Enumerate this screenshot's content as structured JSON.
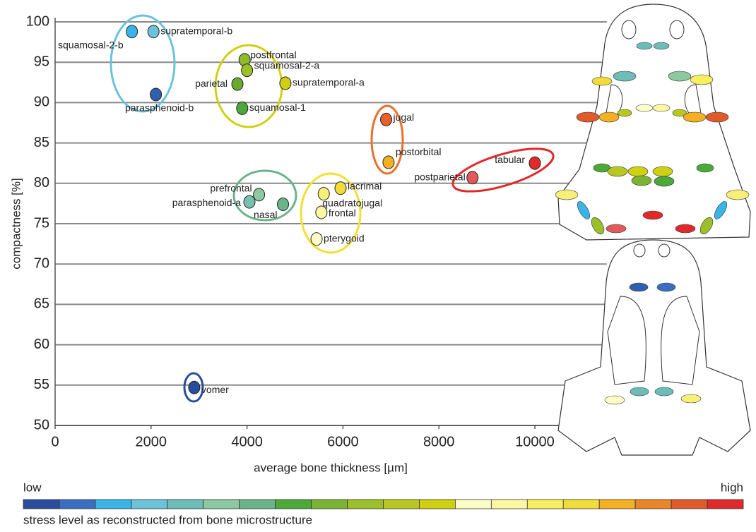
{
  "chart_data": {
    "type": "scatter",
    "x_label": "average bone thickness [µm]",
    "y_label": "compactness [%]",
    "xlim": [
      0,
      11500
    ],
    "ylim": [
      50,
      100
    ],
    "xticks": [
      0,
      2000,
      4000,
      6000,
      8000,
      10000
    ],
    "yticks": [
      50,
      55,
      60,
      65,
      70,
      75,
      80,
      85,
      90,
      95,
      100
    ],
    "grid": true,
    "points": [
      {
        "name": "squamosal-2-b",
        "x": 1600,
        "y": 98.8,
        "color": "#3ab4e6"
      },
      {
        "name": "supratemporal-b",
        "x": 2050,
        "y": 98.8,
        "color": "#6cc2da"
      },
      {
        "name": "parasphenoid-b",
        "x": 2100,
        "y": 91.0,
        "color": "#2f5fb0"
      },
      {
        "name": "postfrontal",
        "x": 3950,
        "y": 95.3,
        "color": "#8dbb2a"
      },
      {
        "name": "squamosal-2-a",
        "x": 4000,
        "y": 94.0,
        "color": "#9cc02a"
      },
      {
        "name": "parietal",
        "x": 3800,
        "y": 92.3,
        "color": "#6aaa2c"
      },
      {
        "name": "supratemporal-a",
        "x": 4800,
        "y": 92.4,
        "color": "#cfd012"
      },
      {
        "name": "squamosal-1",
        "x": 3900,
        "y": 89.3,
        "color": "#4da83a"
      },
      {
        "name": "jugal",
        "x": 6900,
        "y": 87.9,
        "color": "#e8602a"
      },
      {
        "name": "postorbital",
        "x": 6950,
        "y": 82.6,
        "color": "#f4b020"
      },
      {
        "name": "tabular",
        "x": 10000,
        "y": 82.5,
        "color": "#e02a2a"
      },
      {
        "name": "postparietal",
        "x": 8700,
        "y": 80.7,
        "color": "#e05a5a"
      },
      {
        "name": "prefrontal",
        "x": 4250,
        "y": 78.6,
        "color": "#8cc8a0"
      },
      {
        "name": "parasphenoid-a",
        "x": 4050,
        "y": 77.7,
        "color": "#78c0b0"
      },
      {
        "name": "nasal",
        "x": 4750,
        "y": 77.4,
        "color": "#6ab48a"
      },
      {
        "name": "lacrimal",
        "x": 5950,
        "y": 79.4,
        "color": "#f2dc3a"
      },
      {
        "name": "quadratojugal",
        "x": 5600,
        "y": 78.7,
        "color": "#f8ef78"
      },
      {
        "name": "frontal",
        "x": 5550,
        "y": 76.4,
        "color": "#fcf7a0"
      },
      {
        "name": "pterygoid",
        "x": 5450,
        "y": 73.1,
        "color": "#fcfcc8"
      },
      {
        "name": "vomer",
        "x": 2900,
        "y": 54.7,
        "color": "#2a4c9c"
      }
    ],
    "colorbar": {
      "low": "low",
      "high": "high",
      "label": "stress level as reconstructed from bone microstructure",
      "colors": [
        "#2a4c9c",
        "#3a6ec0",
        "#3ab4e6",
        "#6cc2da",
        "#6cbcb8",
        "#8cc8a0",
        "#6ab48a",
        "#4da83a",
        "#7ab432",
        "#9cc02a",
        "#b8c820",
        "#cfd012",
        "#fcfcc8",
        "#fcf7a0",
        "#f8ef60",
        "#f2dc3a",
        "#f4b020",
        "#ec8428",
        "#e05a2a",
        "#e02a2a"
      ]
    }
  }
}
